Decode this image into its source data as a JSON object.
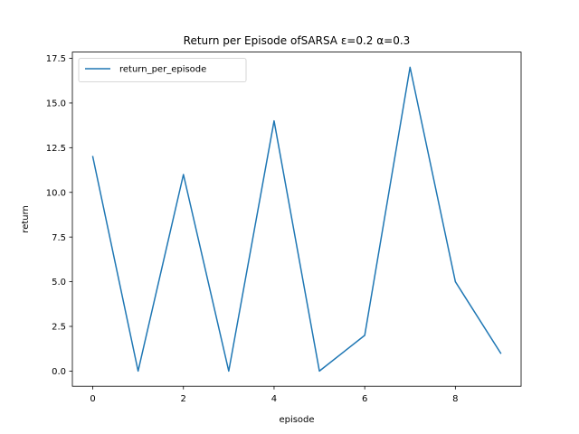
{
  "chart_data": {
    "type": "line",
    "title": "Return per Episode ofSARSA ε=0.2 α=0.3",
    "xlabel": "episode",
    "ylabel": "return",
    "xlim": [
      -0.45,
      9.45
    ],
    "ylim": [
      -0.85,
      17.85
    ],
    "xticks": [
      0,
      2,
      4,
      6,
      8
    ],
    "xtick_labels": [
      "0",
      "2",
      "4",
      "6",
      "8"
    ],
    "yticks": [
      0,
      2.5,
      5,
      7.5,
      10,
      12.5,
      15,
      17.5
    ],
    "ytick_labels": [
      "0.0",
      "2.5",
      "5.0",
      "7.5",
      "10.0",
      "12.5",
      "15.0",
      "17.5"
    ],
    "grid": false,
    "legend_position": "top-left",
    "x": [
      0,
      1,
      2,
      3,
      4,
      5,
      6,
      7,
      8,
      9
    ],
    "series": [
      {
        "name": "return_per_episode",
        "color": "#1f77b4",
        "values": [
          12,
          0,
          11,
          0,
          14,
          0,
          2,
          17,
          5,
          1
        ]
      }
    ]
  }
}
